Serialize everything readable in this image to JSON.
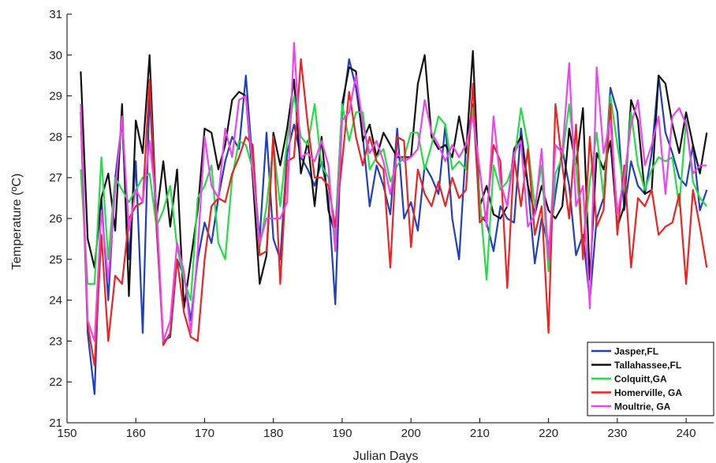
{
  "chart_data": {
    "type": "line",
    "xlabel": "Julian Days",
    "ylabel": "Temperature (ºC)",
    "xlim": [
      150,
      244
    ],
    "ylim": [
      21,
      31
    ],
    "xticks": [
      150,
      160,
      170,
      180,
      190,
      200,
      210,
      220,
      230,
      240
    ],
    "yticks": [
      21,
      22,
      23,
      24,
      25,
      26,
      27,
      28,
      29,
      30,
      31
    ],
    "grid": false,
    "legend_position": "bottom-right",
    "x": [
      152,
      153,
      154,
      155,
      156,
      157,
      158,
      159,
      160,
      161,
      162,
      163,
      164,
      165,
      166,
      167,
      168,
      169,
      170,
      171,
      172,
      173,
      174,
      175,
      176,
      177,
      178,
      179,
      180,
      181,
      182,
      183,
      184,
      185,
      186,
      187,
      188,
      189,
      190,
      191,
      192,
      193,
      194,
      195,
      196,
      197,
      198,
      199,
      200,
      201,
      202,
      203,
      204,
      205,
      206,
      207,
      208,
      209,
      210,
      211,
      212,
      213,
      214,
      215,
      216,
      217,
      218,
      219,
      220,
      221,
      222,
      223,
      224,
      225,
      226,
      227,
      228,
      229,
      230,
      231,
      232,
      233,
      234,
      235,
      236,
      237,
      238,
      239,
      240,
      241,
      242,
      243
    ],
    "series": [
      {
        "name": "Jasper,FL",
        "color": "#1f3fbf",
        "values": [
          28.6,
          23.2,
          21.7,
          26.5,
          24.0,
          27.0,
          28.4,
          25.0,
          27.4,
          23.2,
          29.1,
          25.8,
          23.0,
          23.1,
          25.0,
          24.6,
          23.5,
          25.0,
          25.9,
          25.4,
          26.5,
          27.4,
          28.0,
          27.7,
          29.5,
          27.3,
          25.5,
          28.1,
          25.5,
          25.0,
          27.6,
          28.3,
          27.5,
          27.2,
          26.8,
          27.4,
          26.5,
          23.9,
          28.6,
          29.9,
          29.2,
          28.0,
          26.3,
          27.3,
          26.8,
          26.1,
          28.2,
          26.0,
          26.4,
          25.7,
          27.3,
          27.0,
          26.6,
          28.3,
          26.0,
          25.0,
          27.8,
          28.8,
          26.1,
          25.9,
          25.2,
          26.3,
          26.0,
          25.9,
          28.2,
          26.8,
          24.9,
          26.0,
          25.3,
          26.6,
          27.7,
          26.8,
          25.1,
          25.6,
          24.0,
          26.0,
          26.5,
          29.2,
          28.6,
          26.2,
          27.4,
          26.8,
          26.6,
          27.6,
          29.5,
          28.1,
          27.6,
          27.0,
          26.8,
          27.8,
          26.2,
          26.7
        ]
      },
      {
        "name": "Tallahassee,FL",
        "color": "#111111",
        "values": [
          29.6,
          25.5,
          24.8,
          26.5,
          27.1,
          25.7,
          28.8,
          24.1,
          28.4,
          27.6,
          30.0,
          26.0,
          27.4,
          25.8,
          27.2,
          23.8,
          25.0,
          26.2,
          28.2,
          28.1,
          27.2,
          27.8,
          28.9,
          29.1,
          29.0,
          27.0,
          24.4,
          25.1,
          28.1,
          27.3,
          28.2,
          29.4,
          27.1,
          27.9,
          26.3,
          28.0,
          26.2,
          25.6,
          28.8,
          29.7,
          29.6,
          27.9,
          28.3,
          27.5,
          28.1,
          27.8,
          27.5,
          27.5,
          27.5,
          29.3,
          30.0,
          28.0,
          27.7,
          27.8,
          27.5,
          28.5,
          27.6,
          30.1,
          26.3,
          26.8,
          26.1,
          26.0,
          26.3,
          27.7,
          28.0,
          26.8,
          26.1,
          26.8,
          26.2,
          26.0,
          26.3,
          28.2,
          27.3,
          28.7,
          24.5,
          27.6,
          27.2,
          27.9,
          25.8,
          26.3,
          28.9,
          28.4,
          26.6,
          26.7,
          29.5,
          29.3,
          28.3,
          27.6,
          28.6,
          27.8,
          27.1,
          28.1
        ]
      },
      {
        "name": "Colquitt,GA",
        "color": "#22dd44",
        "values": [
          27.2,
          24.4,
          24.4,
          27.5,
          25.0,
          27.0,
          26.7,
          26.4,
          26.7,
          27.0,
          27.1,
          25.8,
          26.2,
          26.8,
          25.3,
          24.5,
          24.0,
          26.5,
          26.8,
          27.3,
          25.4,
          25.0,
          27.0,
          27.9,
          27.8,
          27.2,
          25.3,
          26.3,
          27.8,
          26.3,
          27.9,
          29.0,
          28.0,
          27.8,
          28.8,
          27.3,
          27.0,
          25.5,
          28.8,
          27.9,
          28.6,
          28.6,
          27.2,
          27.5,
          27.7,
          26.9,
          27.3,
          27.5,
          28.1,
          28.1,
          27.2,
          27.8,
          28.5,
          28.3,
          27.2,
          27.4,
          27.2,
          28.7,
          26.5,
          24.5,
          27.3,
          26.7,
          26.9,
          27.4,
          28.7,
          27.8,
          26.3,
          27.3,
          24.7,
          27.1,
          27.5,
          28.8,
          27.3,
          25.2,
          26.9,
          28.1,
          26.5,
          29.0,
          27.8,
          26.7,
          28.6,
          27.3,
          26.7,
          27.2,
          27.5,
          27.4,
          27.5,
          26.3,
          28.4,
          26.9,
          26.5,
          26.3
        ]
      },
      {
        "name": "Homerville, GA",
        "color": "#ee2222",
        "values": [
          28.6,
          23.4,
          22.4,
          25.6,
          23.0,
          24.6,
          24.4,
          26.0,
          26.3,
          26.4,
          29.4,
          26.0,
          22.9,
          23.2,
          25.0,
          23.7,
          23.1,
          23.0,
          25.0,
          26.3,
          26.5,
          26.4,
          27.1,
          27.5,
          28.0,
          27.8,
          25.1,
          25.2,
          28.0,
          24.4,
          27.4,
          27.5,
          29.9,
          28.3,
          27.0,
          27.0,
          26.8,
          25.8,
          27.4,
          29.1,
          28.0,
          27.3,
          28.0,
          27.4,
          27.2,
          24.8,
          28.0,
          27.9,
          25.3,
          27.2,
          26.6,
          26.3,
          26.9,
          26.3,
          27.0,
          26.5,
          26.7,
          29.3,
          25.9,
          26.1,
          27.8,
          27.4,
          24.3,
          27.5,
          26.3,
          27.7,
          25.6,
          26.3,
          23.2,
          28.8,
          27.3,
          26.0,
          28.3,
          25.0,
          28.0,
          25.8,
          26.2,
          28.8,
          25.6,
          27.3,
          24.8,
          26.5,
          26.3,
          26.7,
          25.6,
          25.8,
          25.9,
          26.6,
          24.4,
          26.7,
          25.8,
          24.8
        ]
      },
      {
        "name": "Moultrie, GA",
        "color": "#ee44ee",
        "values": [
          28.8,
          23.5,
          23.0,
          26.2,
          24.5,
          26.7,
          28.5,
          25.7,
          26.7,
          26.4,
          27.9,
          26.3,
          23.0,
          23.5,
          25.4,
          24.7,
          23.2,
          25.2,
          28.0,
          26.8,
          26.5,
          28.2,
          27.5,
          28.9,
          29.0,
          27.2,
          25.4,
          26.0,
          26.0,
          26.0,
          26.4,
          30.3,
          27.5,
          27.6,
          27.4,
          27.9,
          27.3,
          25.2,
          28.4,
          28.6,
          29.5,
          28.3,
          27.6,
          27.9,
          27.4,
          26.6,
          27.6,
          27.4,
          27.5,
          27.7,
          28.9,
          28.1,
          27.8,
          27.4,
          27.8,
          27.5,
          27.8,
          28.5,
          27.2,
          25.8,
          28.5,
          26.9,
          26.3,
          27.6,
          27.9,
          25.8,
          26.1,
          27.7,
          25.0,
          27.8,
          27.6,
          29.8,
          26.3,
          26.8,
          23.8,
          29.7,
          27.6,
          28.4,
          26.1,
          27.0,
          28.3,
          28.9,
          27.3,
          27.8,
          28.5,
          26.6,
          28.5,
          28.7,
          28.3,
          27.1,
          27.3,
          27.3
        ]
      }
    ]
  }
}
